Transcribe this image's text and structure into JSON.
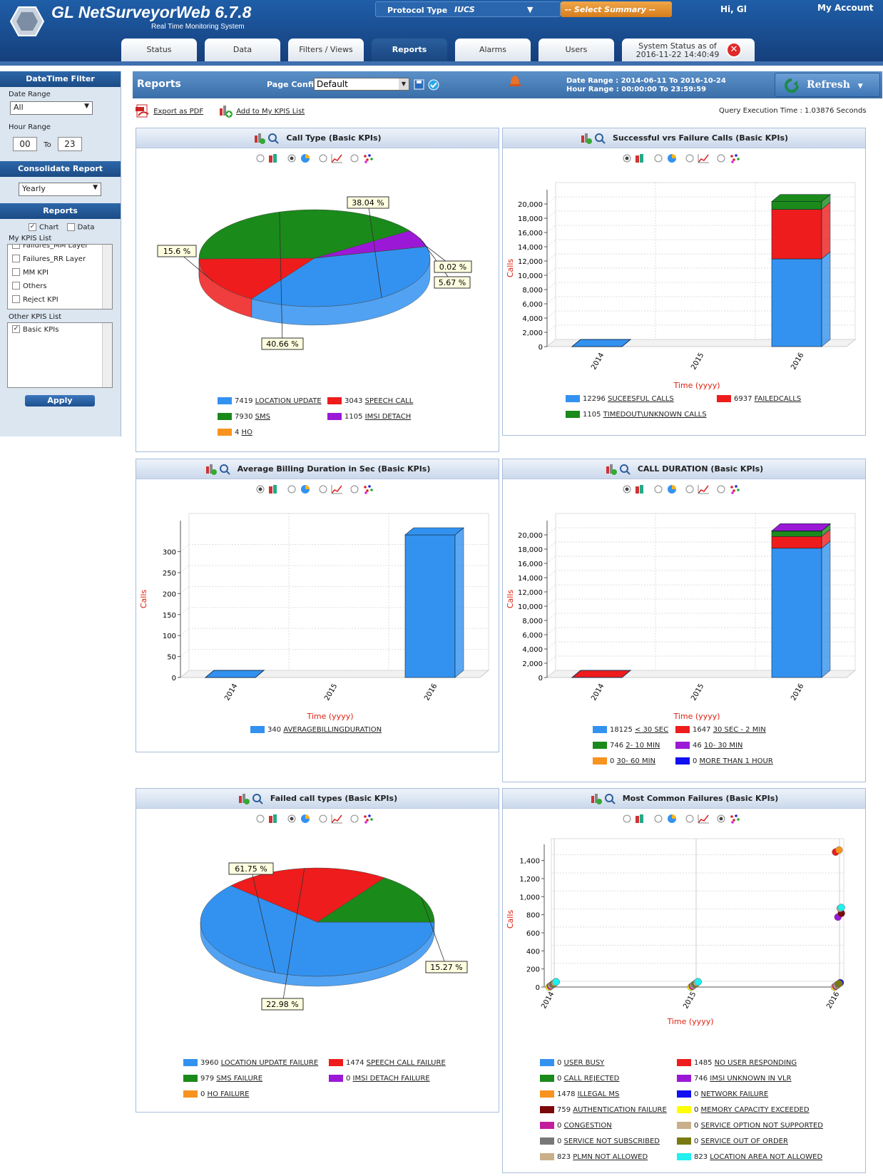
{
  "header": {
    "title": "GL NetSurveyorWeb 6.7.8",
    "subtitle": "Real Time Monitoring System",
    "protocol_label": "Protocol Type",
    "protocol_value": "IUCS",
    "summary_select": "-- Select Summary --",
    "greeting": "Hi, Gl",
    "account": "My Account"
  },
  "tabs": [
    {
      "label": "Status"
    },
    {
      "label": "Data"
    },
    {
      "label": "Filters / Views"
    },
    {
      "label": "Reports"
    },
    {
      "label": "Alarms"
    },
    {
      "label": "Users"
    }
  ],
  "system_status": {
    "line1": "System Status as of",
    "line2": "2016-11-22 14:40:49"
  },
  "sidebar": {
    "datetime_head": "DateTime Filter",
    "date_range_label": "Date Range",
    "date_range_value": "All",
    "hour_range_label": "Hour Range",
    "hour_from": "00",
    "hour_to_label": "To",
    "hour_to": "23",
    "consolidate_head": "Consolidate Report",
    "consolidate_value": "Yearly",
    "reports_head": "Reports",
    "chart_label": "Chart",
    "data_label": "Data",
    "my_kpis_label": "My KPIS List",
    "my_kpis": [
      "Failures_MM Layer",
      "Failures_RR Layer",
      "MM KPI",
      "Others",
      "Reject KPI"
    ],
    "other_kpis_label": "Other KPIS List",
    "other_kpis": [
      "Basic KPIs"
    ],
    "apply": "Apply"
  },
  "reports": {
    "title": "Reports",
    "page_config_label": "Page Config",
    "page_config_value": "Default",
    "date_range": "Date Range :  2014-06-11 To 2016-10-24",
    "hour_range": "Hour Range : 00:00:00 To 23:59:59",
    "refresh": "Refresh",
    "export_pdf": "Export as PDF",
    "add_kpis": "Add to My KPIS List",
    "query_time": "Query Execution Time : 1.03876 Seconds"
  },
  "colors": {
    "blue": "#3392f0",
    "red": "#ee1c1c",
    "green": "#1a8a1a",
    "purple": "#9b19d6",
    "orange": "#f7931e",
    "darkred": "#7a0a0a",
    "yellow": "#ffff00",
    "magenta": "#c21e9c",
    "tan": "#c9b08a",
    "olive": "#7a7a10",
    "gray": "#777777",
    "navy": "#1010f0",
    "cyan": "#20f0f0"
  },
  "chart_data": [
    {
      "type": "pie",
      "title": "Call Type (Basic KPIs)",
      "slices": [
        {
          "name": "LOCATION UPDATE",
          "value": 7419,
          "pct": "38.04 %"
        },
        {
          "name": "SPEECH CALL",
          "value": 3043,
          "pct": "15.6 %"
        },
        {
          "name": "SMS",
          "value": 7930,
          "pct": "40.66 %"
        },
        {
          "name": "IMSI DETACH",
          "value": 1105,
          "pct": "5.67 %"
        },
        {
          "name": "HO",
          "value": 4,
          "pct": "0.02 %"
        }
      ]
    },
    {
      "type": "bar",
      "title": "Successful vrs Failure Calls (Basic KPIs)",
      "categories": [
        "2014",
        "2015",
        "2016"
      ],
      "xlabel": "Time (yyyy)",
      "ylabel": "Calls",
      "ylim": [
        0,
        20000
      ],
      "yticks": [
        "0",
        "2,000",
        "4,000",
        "6,000",
        "8,000",
        "10,000",
        "12,000",
        "14,000",
        "16,000",
        "18,000",
        "20,000"
      ],
      "series": [
        {
          "name": "SUCEESFUL CALLS",
          "total": 12296,
          "values": [
            0,
            0,
            12296
          ]
        },
        {
          "name": "FAILEDCALLS",
          "total": 6937,
          "values": [
            0,
            0,
            6937
          ]
        },
        {
          "name": "TIMEDOUT\\UNKNOWN CALLS",
          "total": 1105,
          "values": [
            0,
            0,
            1105
          ]
        }
      ]
    },
    {
      "type": "bar",
      "title": "Average Billing Duration in Sec (Basic KPIs)",
      "categories": [
        "2014",
        "2015",
        "2016"
      ],
      "xlabel": "Time (yyyy)",
      "ylabel": "Calls",
      "ylim": [
        0,
        340
      ],
      "yticks": [
        "0",
        "50",
        "100",
        "150",
        "200",
        "250",
        "300"
      ],
      "series": [
        {
          "name": "AVERAGEBILLINGDURATION",
          "total": 340,
          "values": [
            0,
            0,
            340
          ]
        }
      ]
    },
    {
      "type": "bar",
      "title": "CALL DURATION (Basic KPIs)",
      "categories": [
        "2014",
        "2015",
        "2016"
      ],
      "xlabel": "Time (yyyy)",
      "ylabel": "Calls",
      "ylim": [
        0,
        20000
      ],
      "yticks": [
        "0",
        "2,000",
        "4,000",
        "6,000",
        "8,000",
        "10,000",
        "12,000",
        "14,000",
        "16,000",
        "18,000",
        "20,000"
      ],
      "series": [
        {
          "name": "< 30 SEC",
          "total": 18125,
          "values": [
            0,
            0,
            18125
          ]
        },
        {
          "name": "30 SEC - 2 MIN",
          "total": 1647,
          "values": [
            0,
            0,
            1647
          ]
        },
        {
          "name": "2- 10 MIN",
          "total": 746,
          "values": [
            0,
            0,
            746
          ]
        },
        {
          "name": "10- 30 MIN",
          "total": 46,
          "values": [
            0,
            0,
            46
          ]
        },
        {
          "name": "30- 60 MIN",
          "total": 0,
          "values": [
            0,
            0,
            0
          ]
        },
        {
          "name": "MORE THAN 1 HOUR",
          "total": 0,
          "values": [
            0,
            0,
            0
          ]
        }
      ]
    },
    {
      "type": "pie",
      "title": "Failed call types (Basic KPIs)",
      "slices": [
        {
          "name": "LOCATION UPDATE FAILURE",
          "value": 3960,
          "pct": "61.75 %"
        },
        {
          "name": "SPEECH CALL FAILURE",
          "value": 1474,
          "pct": "22.98 %"
        },
        {
          "name": "SMS FAILURE",
          "value": 979,
          "pct": "15.27 %"
        },
        {
          "name": "IMSI DETACH FAILURE",
          "value": 0,
          "pct": ""
        },
        {
          "name": "HO FAILURE",
          "value": 0,
          "pct": ""
        }
      ]
    },
    {
      "type": "scatter",
      "title": "Most Common Failures (Basic KPIs)",
      "categories": [
        "2014",
        "2015",
        "2016"
      ],
      "xlabel": "Time (yyyy)",
      "ylabel": "Calls",
      "ylim": [
        0,
        1485
      ],
      "yticks": [
        "0",
        "200",
        "400",
        "600",
        "800",
        "1,000",
        "1,200",
        "1,400"
      ],
      "series": [
        {
          "name": "USER BUSY",
          "total": 0
        },
        {
          "name": "NO USER RESPONDING",
          "total": 1485
        },
        {
          "name": "CALL REJECTED",
          "total": 0
        },
        {
          "name": "IMSI UNKNOWN IN VLR",
          "total": 746
        },
        {
          "name": "ILLEGAL MS",
          "total": 1478
        },
        {
          "name": "NETWORK FAILURE",
          "total": 0
        },
        {
          "name": "AUTHENTICATION FAILURE",
          "total": 759
        },
        {
          "name": "MEMORY CAPACITY EXCEEDED",
          "total": 0
        },
        {
          "name": "CONGESTION",
          "total": 0
        },
        {
          "name": "SERVICE OPTION NOT SUPPORTED",
          "total": 0
        },
        {
          "name": "SERVICE NOT SUBSCRIBED",
          "total": 0
        },
        {
          "name": "SERVICE OUT OF ORDER",
          "total": 0
        },
        {
          "name": "PLMN NOT ALLOWED",
          "total": 823
        },
        {
          "name": "LOCATION AREA NOT ALLOWED",
          "total": 823
        }
      ]
    }
  ]
}
